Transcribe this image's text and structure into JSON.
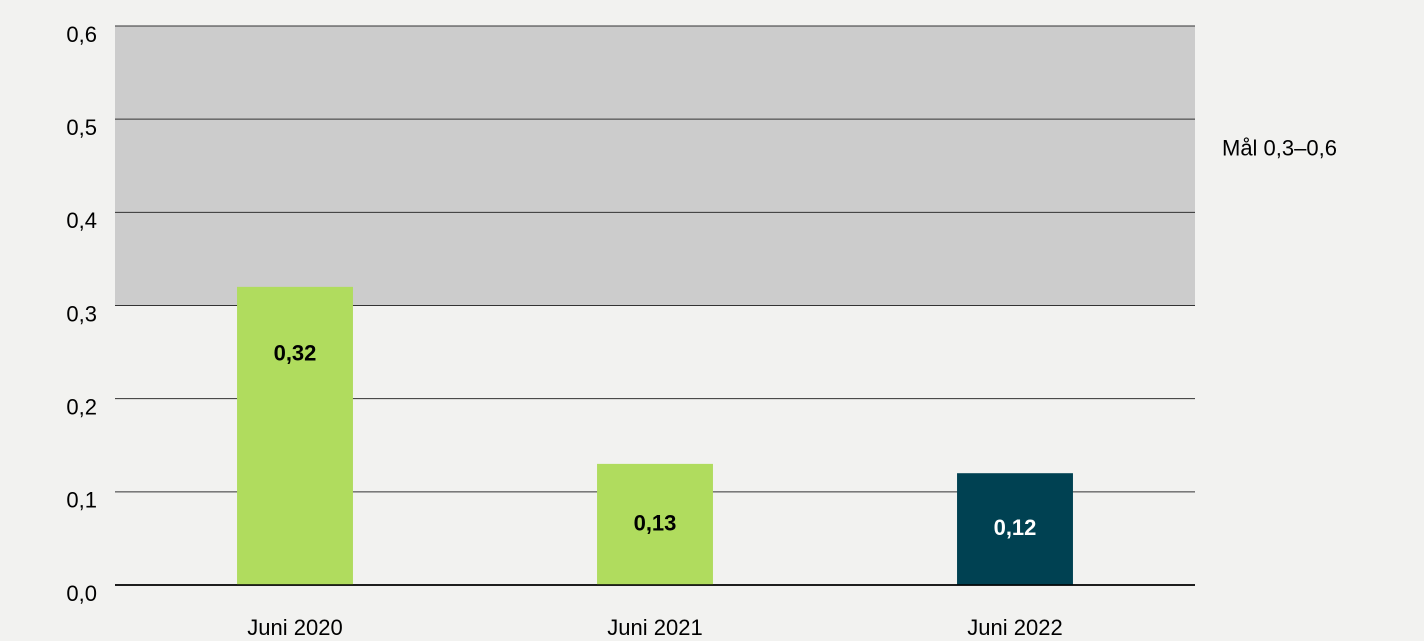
{
  "chart_data": {
    "type": "bar",
    "categories": [
      "Juni 2020",
      "Juni 2021",
      "Juni 2022"
    ],
    "values": [
      0.32,
      0.13,
      0.12
    ],
    "value_labels": [
      "0,32",
      "0,13",
      "0,12"
    ],
    "colors": [
      "#b0dc5e",
      "#b0dc5e",
      "#004152"
    ],
    "label_colors": [
      "#000000",
      "#000000",
      "#ffffff"
    ],
    "ylim": [
      0,
      0.6
    ],
    "yticks": [
      {
        "value": 0,
        "label": "0,0"
      },
      {
        "value": 0.1,
        "label": "0,1"
      },
      {
        "value": 0.2,
        "label": "0,2"
      },
      {
        "value": 0.3,
        "label": "0,3"
      },
      {
        "value": 0.4,
        "label": "0,4"
      },
      {
        "value": 0.5,
        "label": "0,5"
      },
      {
        "value": 0.6,
        "label": "0,6"
      }
    ],
    "grid": true,
    "target_band": [
      0.3,
      0.6
    ],
    "target_color": "#cccccc",
    "annotation": "Mål 0,3–0,6"
  }
}
